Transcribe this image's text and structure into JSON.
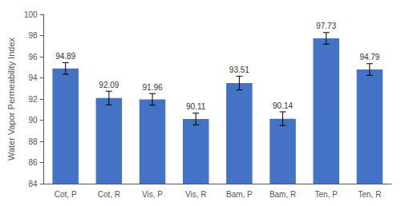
{
  "chart_data": {
    "type": "bar",
    "categories": [
      "Cot, P",
      "Cot, R",
      "Vis, P",
      "Vis, R",
      "Bam, P",
      "Bam, R",
      "Ten, P",
      "Ten, R"
    ],
    "values": [
      94.89,
      92.09,
      91.96,
      90.11,
      93.51,
      90.14,
      97.73,
      94.79
    ],
    "errors": [
      0.55,
      0.65,
      0.55,
      0.55,
      0.65,
      0.65,
      0.55,
      0.55
    ],
    "color": "#4472C4",
    "ylabel": "Water Vapor Permeability Index",
    "ylim": [
      84,
      100
    ],
    "yticks": [
      84,
      86,
      88,
      90,
      92,
      94,
      96,
      98,
      100
    ],
    "data_labels": true,
    "grid": false
  }
}
